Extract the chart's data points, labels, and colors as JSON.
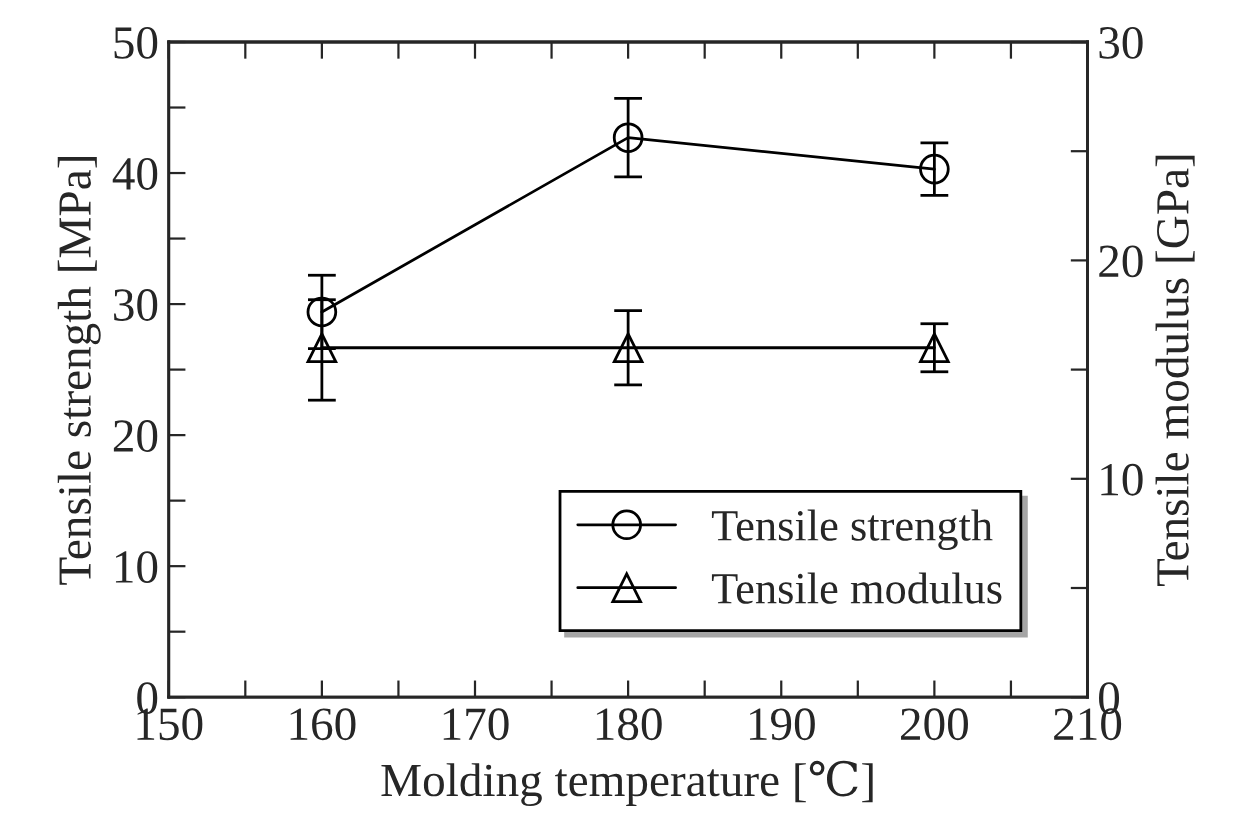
{
  "chart_data": {
    "type": "line",
    "xlabel": "Molding temperature [℃]",
    "ylabel": "Tensile strength [MPa]",
    "y2label": "Tensile modulus [GPa]",
    "x": [
      160,
      180,
      200
    ],
    "series": [
      {
        "name": "Tensile strength",
        "color": "#000000",
        "values": [
          29.4,
          42.7,
          40.3
        ],
        "errors": [
          2.8,
          3.0,
          2.0
        ],
        "marker": "circle"
      },
      {
        "name": "Tensile modulus",
        "color": "#000000",
        "values": [
          16.0,
          16.0,
          16.0
        ],
        "errors": [
          [
            13.6,
            18.2
          ],
          [
            14.3,
            17.7
          ],
          [
            14.9,
            17.1
          ]
        ],
        "marker": "triangle",
        "axis": "y2"
      }
    ],
    "xlim": [
      150,
      210
    ],
    "xticks": [
      150,
      {
        "value": 155,
        "label": null
      },
      160,
      {
        "value": 165,
        "label": null
      },
      170,
      {
        "value": 175,
        "label": null
      },
      180,
      {
        "value": 185,
        "label": null
      },
      190,
      {
        "value": 195,
        "label": null
      },
      200,
      {
        "value": 205,
        "label": null
      },
      210
    ],
    "ylim": [
      0,
      50
    ],
    "yticks": [
      0,
      {
        "value": 5,
        "label": null
      },
      10,
      {
        "value": 15,
        "label": null
      },
      20,
      {
        "value": 25,
        "label": null
      },
      30,
      {
        "value": 35,
        "label": null
      },
      40,
      {
        "value": 45,
        "label": null
      },
      50
    ],
    "y2lim": [
      0,
      30
    ],
    "y2ticks": [
      0,
      {
        "value": 5,
        "label": null
      },
      10,
      {
        "value": 15,
        "label": null
      },
      20,
      {
        "value": 25,
        "label": null
      },
      30
    ],
    "legend": "bottom right",
    "grid": false,
    "line_style": "solid"
  }
}
